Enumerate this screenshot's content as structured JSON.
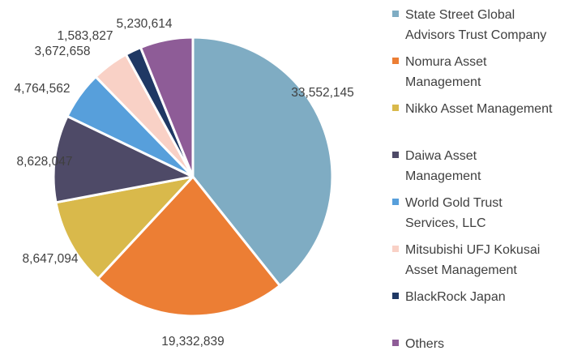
{
  "chart_data": {
    "type": "pie",
    "title": "",
    "legend": "right",
    "slices": [
      {
        "name": "State Street Global Advisors Trust Company",
        "legend_lines": [
          "State Street Global",
          "Advisors Trust Company"
        ],
        "value": 33552145,
        "label": "33,552,145",
        "color": "#7FACC3"
      },
      {
        "name": "Nomura Asset Management",
        "legend_lines": [
          "Nomura Asset",
          "Management"
        ],
        "value": 19332839,
        "label": "19,332,839",
        "color": "#EC7E34"
      },
      {
        "name": "Nikko Asset Management",
        "legend_lines": [
          "Nikko Asset Management"
        ],
        "value": 8647094,
        "label": "8,647,094",
        "color": "#D9B94B"
      },
      {
        "name": "Daiwa Asset Management",
        "legend_lines": [
          "Daiwa Asset",
          "Management"
        ],
        "value": 8628047,
        "label": "8,628,047",
        "color": "#4E4A67"
      },
      {
        "name": "World Gold Trust Services, LLC",
        "legend_lines": [
          "World Gold Trust",
          "Services, LLC"
        ],
        "value": 4764562,
        "label": "4,764,562",
        "color": "#579FDB"
      },
      {
        "name": "Mitsubishi UFJ Kokusai Asset Management",
        "legend_lines": [
          "Mitsubishi UFJ Kokusai",
          "Asset Management"
        ],
        "value": 3672658,
        "label": "3,672,658",
        "color": "#F9D1C6"
      },
      {
        "name": "BlackRock Japan",
        "legend_lines": [
          "BlackRock Japan"
        ],
        "value": 1583827,
        "label": "1,583,827",
        "color": "#1F3864"
      },
      {
        "name": "Others",
        "legend_lines": [
          "Others"
        ],
        "value": 5230614,
        "label": "5,230,614",
        "color": "#8E5C97"
      }
    ]
  }
}
